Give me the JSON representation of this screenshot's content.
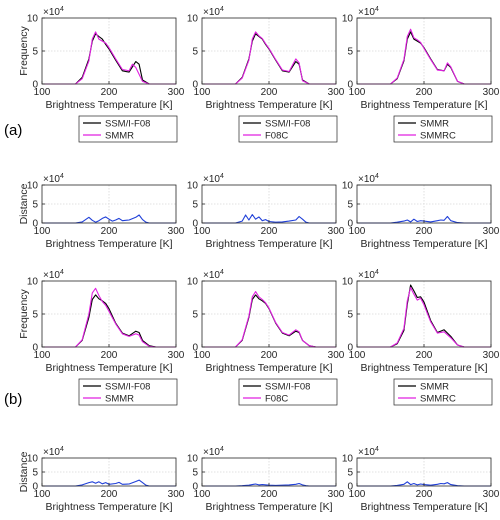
{
  "group_labels": [
    "(a)",
    "(b)"
  ],
  "colors": {
    "black": "#000000",
    "magenta": "#e020e0",
    "blue": "#1f3fd8",
    "grid": "#d8d8d8",
    "axis": "#262626"
  },
  "chart_data": [
    {
      "type": "line",
      "ylabel": "Frequency",
      "xlabel": "Brightness Temperature [K]",
      "exponent": "×10^4",
      "xlim": [
        100,
        300
      ],
      "ylim": [
        0,
        10
      ],
      "xticks": [
        "100",
        "200",
        "300"
      ],
      "yticks": [
        "0",
        "5",
        "10"
      ],
      "legend": [
        "SSM/I-F08",
        "SMMR"
      ],
      "series": [
        {
          "name": "SSM/I-F08",
          "color": "black",
          "x": [
            100,
            150,
            160,
            170,
            175,
            180,
            185,
            190,
            195,
            200,
            210,
            220,
            230,
            240,
            245,
            250,
            260,
            300
          ],
          "y": [
            0,
            0,
            1.0,
            3.8,
            6.5,
            7.6,
            7.2,
            6.8,
            6.0,
            5.3,
            3.6,
            2.0,
            1.8,
            3.4,
            3.0,
            0.6,
            0,
            0
          ]
        },
        {
          "name": "SMMR",
          "color": "magenta",
          "x": [
            100,
            150,
            160,
            170,
            175,
            180,
            185,
            190,
            195,
            200,
            210,
            220,
            230,
            235,
            240,
            250,
            260,
            300
          ],
          "y": [
            0,
            0,
            0.8,
            3.5,
            6.8,
            7.9,
            6.8,
            6.5,
            6.2,
            5.5,
            3.8,
            2.2,
            2.0,
            3.0,
            2.5,
            0.4,
            0,
            0
          ]
        }
      ]
    },
    {
      "type": "line",
      "ylabel": "",
      "xlabel": "Brightness Temperature [K]",
      "exponent": "×10^4",
      "xlim": [
        100,
        300
      ],
      "ylim": [
        0,
        10
      ],
      "xticks": [
        "100",
        "200",
        "300"
      ],
      "yticks": [
        "0",
        "5",
        "10"
      ],
      "legend": [
        "SSM/I-F08",
        "F08C"
      ],
      "series": [
        {
          "name": "SSM/I-F08",
          "color": "black",
          "x": [
            100,
            150,
            160,
            170,
            175,
            180,
            185,
            190,
            195,
            200,
            210,
            220,
            230,
            240,
            245,
            250,
            260,
            300
          ],
          "y": [
            0,
            0,
            1.0,
            3.8,
            6.5,
            7.6,
            7.2,
            6.8,
            6.0,
            5.3,
            3.6,
            2.0,
            1.8,
            3.4,
            3.0,
            0.6,
            0,
            0
          ]
        },
        {
          "name": "F08C",
          "color": "magenta",
          "x": [
            100,
            150,
            160,
            170,
            175,
            180,
            185,
            190,
            195,
            200,
            210,
            220,
            230,
            240,
            245,
            250,
            260,
            300
          ],
          "y": [
            0,
            0,
            0.9,
            3.6,
            6.8,
            7.9,
            7.3,
            6.9,
            6.1,
            5.4,
            3.7,
            2.1,
            1.9,
            3.8,
            3.2,
            0.5,
            0,
            0
          ]
        }
      ]
    },
    {
      "type": "line",
      "ylabel": "",
      "xlabel": "Brightness Temperature [K]",
      "exponent": "×10^4",
      "xlim": [
        100,
        300
      ],
      "ylim": [
        0,
        10
      ],
      "xticks": [
        "100",
        "200",
        "300"
      ],
      "yticks": [
        "0",
        "5",
        "10"
      ],
      "legend": [
        "SMMR",
        "SMMRC"
      ],
      "series": [
        {
          "name": "SMMR",
          "color": "black",
          "x": [
            100,
            150,
            160,
            170,
            175,
            180,
            185,
            190,
            195,
            200,
            210,
            220,
            230,
            235,
            240,
            250,
            260,
            300
          ],
          "y": [
            0,
            0,
            0.8,
            3.5,
            6.8,
            7.9,
            6.8,
            6.5,
            6.2,
            5.5,
            3.8,
            2.2,
            2.0,
            3.0,
            2.5,
            0.4,
            0,
            0
          ]
        },
        {
          "name": "SMMRC",
          "color": "magenta",
          "x": [
            100,
            150,
            160,
            170,
            175,
            180,
            185,
            190,
            195,
            200,
            210,
            220,
            230,
            235,
            240,
            250,
            260,
            300
          ],
          "y": [
            0,
            0,
            0.9,
            3.7,
            7.2,
            8.3,
            7.0,
            6.7,
            6.3,
            5.4,
            3.7,
            2.1,
            2.0,
            3.2,
            2.6,
            0.4,
            0,
            0
          ]
        }
      ]
    },
    {
      "type": "line",
      "ylabel": "Distance",
      "xlabel": "Brightness Temperature [K]",
      "exponent": "×10^4",
      "xlim": [
        100,
        300
      ],
      "ylim": [
        0,
        10
      ],
      "xticks": [
        "100",
        "200",
        "300"
      ],
      "yticks": [
        "0",
        "5",
        "10"
      ],
      "legend": [],
      "series": [
        {
          "color": "blue",
          "x": [
            100,
            150,
            160,
            170,
            175,
            180,
            185,
            190,
            195,
            200,
            205,
            210,
            215,
            220,
            230,
            240,
            245,
            250,
            255,
            260,
            300
          ],
          "y": [
            0,
            0,
            0.3,
            1.5,
            0.7,
            0.2,
            0.6,
            1.2,
            1.6,
            1.0,
            0.5,
            0.8,
            1.2,
            0.6,
            0.8,
            1.5,
            2.1,
            0.9,
            0.2,
            0,
            0
          ]
        }
      ]
    },
    {
      "type": "line",
      "ylabel": "",
      "xlabel": "Brightness Temperature [K]",
      "exponent": "×10^4",
      "xlim": [
        100,
        300
      ],
      "ylim": [
        0,
        10
      ],
      "xticks": [
        "100",
        "200",
        "300"
      ],
      "yticks": [
        "0",
        "5",
        "10"
      ],
      "legend": [],
      "series": [
        {
          "color": "blue",
          "x": [
            100,
            150,
            160,
            165,
            170,
            175,
            180,
            185,
            190,
            195,
            200,
            210,
            220,
            230,
            240,
            245,
            250,
            255,
            260,
            300
          ],
          "y": [
            0,
            0,
            0.5,
            2.1,
            0.8,
            2.2,
            1.0,
            1.6,
            0.6,
            0.9,
            0.4,
            0.2,
            0.3,
            0.5,
            0.8,
            1.7,
            1.0,
            0.2,
            0,
            0
          ]
        }
      ]
    },
    {
      "type": "line",
      "ylabel": "",
      "xlabel": "Brightness Temperature [K]",
      "exponent": "×10^4",
      "xlim": [
        100,
        300
      ],
      "ylim": [
        0,
        10
      ],
      "xticks": [
        "100",
        "200",
        "300"
      ],
      "yticks": [
        "0",
        "5",
        "10"
      ],
      "legend": [],
      "series": [
        {
          "color": "blue",
          "x": [
            100,
            150,
            160,
            170,
            175,
            180,
            185,
            190,
            195,
            200,
            210,
            220,
            225,
            230,
            235,
            240,
            250,
            260,
            300
          ],
          "y": [
            0,
            0,
            0.2,
            0.5,
            0.8,
            0.3,
            1.0,
            0.4,
            0.6,
            0.5,
            0.3,
            0.6,
            0.8,
            0.7,
            1.7,
            0.6,
            0.1,
            0,
            0
          ]
        }
      ]
    },
    {
      "type": "line",
      "ylabel": "Frequency",
      "xlabel": "Brightness Temperature [K]",
      "exponent": "×10^4",
      "xlim": [
        100,
        300
      ],
      "ylim": [
        0,
        10
      ],
      "xticks": [
        "100",
        "200",
        "300"
      ],
      "yticks": [
        "0",
        "5",
        "10"
      ],
      "legend": [
        "SSM/I-F08",
        "SMMR"
      ],
      "series": [
        {
          "name": "SSM/I-F08",
          "color": "black",
          "x": [
            100,
            150,
            160,
            170,
            175,
            180,
            185,
            190,
            195,
            200,
            210,
            220,
            230,
            240,
            245,
            250,
            260,
            270,
            300
          ],
          "y": [
            0,
            0,
            1.0,
            4.5,
            7.2,
            7.9,
            7.3,
            7.0,
            6.6,
            5.8,
            3.6,
            2.1,
            1.7,
            2.4,
            2.2,
            1.0,
            0.2,
            0,
            0
          ]
        },
        {
          "name": "SMMR",
          "color": "magenta",
          "x": [
            100,
            150,
            160,
            170,
            175,
            180,
            185,
            190,
            195,
            200,
            210,
            220,
            230,
            240,
            245,
            250,
            260,
            270,
            300
          ],
          "y": [
            0,
            0,
            1.1,
            5.0,
            8.2,
            8.9,
            7.8,
            6.9,
            6.3,
            5.4,
            3.5,
            2.0,
            1.6,
            2.0,
            1.8,
            0.8,
            0.1,
            0,
            0
          ]
        }
      ]
    },
    {
      "type": "line",
      "ylabel": "",
      "xlabel": "Brightness Temperature [K]",
      "exponent": "×10^4",
      "xlim": [
        100,
        300
      ],
      "ylim": [
        0,
        10
      ],
      "xticks": [
        "100",
        "200",
        "300"
      ],
      "yticks": [
        "0",
        "5",
        "10"
      ],
      "legend": [
        "SSM/I-F08",
        "F08C"
      ],
      "series": [
        {
          "name": "SSM/I-F08",
          "color": "black",
          "x": [
            100,
            150,
            160,
            170,
            175,
            180,
            185,
            190,
            195,
            200,
            210,
            220,
            230,
            240,
            245,
            250,
            260,
            270,
            300
          ],
          "y": [
            0,
            0,
            1.0,
            4.5,
            7.2,
            7.9,
            7.3,
            7.0,
            6.6,
            5.8,
            3.6,
            2.1,
            1.7,
            2.4,
            2.2,
            1.0,
            0.2,
            0,
            0
          ]
        },
        {
          "name": "F08C",
          "color": "magenta",
          "x": [
            100,
            150,
            160,
            170,
            175,
            180,
            185,
            190,
            195,
            200,
            210,
            220,
            230,
            240,
            245,
            250,
            260,
            270,
            300
          ],
          "y": [
            0,
            0,
            1.1,
            4.7,
            7.6,
            8.4,
            7.6,
            7.2,
            6.7,
            5.9,
            3.7,
            2.2,
            1.8,
            2.6,
            2.3,
            1.0,
            0.2,
            0,
            0
          ]
        }
      ]
    },
    {
      "type": "line",
      "ylabel": "",
      "xlabel": "Brightness Temperature [K]",
      "exponent": "×10^4",
      "xlim": [
        100,
        300
      ],
      "ylim": [
        0,
        10
      ],
      "xticks": [
        "100",
        "200",
        "300"
      ],
      "yticks": [
        "0",
        "5",
        "10"
      ],
      "legend": [
        "SMMR",
        "SMMRC"
      ],
      "series": [
        {
          "name": "SMMR",
          "color": "black",
          "x": [
            100,
            150,
            160,
            170,
            175,
            180,
            185,
            190,
            195,
            200,
            210,
            220,
            230,
            240,
            250,
            260,
            300
          ],
          "y": [
            0,
            0,
            0.5,
            2.5,
            6.5,
            9.4,
            8.5,
            7.5,
            7.6,
            6.8,
            4.0,
            2.2,
            2.6,
            1.6,
            0.3,
            0,
            0
          ]
        },
        {
          "name": "SMMRC",
          "color": "magenta",
          "x": [
            100,
            150,
            160,
            170,
            175,
            180,
            185,
            190,
            195,
            200,
            210,
            220,
            230,
            240,
            250,
            260,
            300
          ],
          "y": [
            0,
            0,
            0.6,
            2.8,
            7.0,
            9.0,
            8.0,
            7.1,
            7.4,
            6.4,
            3.8,
            2.1,
            2.3,
            1.4,
            0.3,
            0,
            0
          ]
        }
      ]
    },
    {
      "type": "line",
      "ylabel": "Distance",
      "xlabel": "Brightness Temperature [K]",
      "exponent": "×10^4",
      "xlim": [
        100,
        300
      ],
      "ylim": [
        0,
        10
      ],
      "xticks": [
        "100",
        "200",
        "300"
      ],
      "yticks": [
        "0",
        "5",
        "10"
      ],
      "legend": [],
      "series": [
        {
          "color": "blue",
          "x": [
            100,
            150,
            160,
            170,
            175,
            180,
            185,
            190,
            195,
            200,
            210,
            215,
            220,
            230,
            240,
            245,
            250,
            255,
            260,
            300
          ],
          "y": [
            0,
            0,
            0.4,
            1.2,
            1.5,
            1.0,
            1.5,
            0.8,
            1.2,
            0.6,
            0.9,
            1.3,
            0.6,
            0.7,
            1.6,
            2.1,
            1.2,
            0.3,
            0,
            0
          ]
        }
      ]
    },
    {
      "type": "line",
      "ylabel": "",
      "xlabel": "Brightness Temperature [K]",
      "exponent": "×10^4",
      "xlim": [
        100,
        300
      ],
      "ylim": [
        0,
        10
      ],
      "xticks": [
        "100",
        "200",
        "300"
      ],
      "yticks": [
        "0",
        "5",
        "10"
      ],
      "legend": [],
      "series": [
        {
          "color": "blue",
          "x": [
            100,
            150,
            160,
            170,
            175,
            180,
            185,
            190,
            200,
            210,
            220,
            230,
            240,
            245,
            250,
            255,
            260,
            300
          ],
          "y": [
            0,
            0,
            0.1,
            0.3,
            0.5,
            0.7,
            0.4,
            0.5,
            0.3,
            0.2,
            0.3,
            0.4,
            0.6,
            0.9,
            0.4,
            0.1,
            0,
            0
          ]
        }
      ]
    },
    {
      "type": "line",
      "ylabel": "",
      "xlabel": "Brightness Temperature [K]",
      "exponent": "×10^4",
      "xlim": [
        100,
        300
      ],
      "ylim": [
        0,
        10
      ],
      "xticks": [
        "100",
        "200",
        "300"
      ],
      "yticks": [
        "0",
        "5",
        "10"
      ],
      "legend": [],
      "series": [
        {
          "color": "blue",
          "x": [
            100,
            150,
            160,
            170,
            175,
            180,
            185,
            190,
            195,
            200,
            210,
            220,
            225,
            230,
            235,
            240,
            250,
            260,
            300
          ],
          "y": [
            0,
            0,
            0.2,
            0.6,
            1.5,
            0.5,
            0.9,
            0.4,
            0.7,
            0.5,
            0.3,
            0.6,
            0.9,
            0.8,
            1.2,
            0.5,
            0.1,
            0,
            0
          ]
        }
      ]
    }
  ]
}
